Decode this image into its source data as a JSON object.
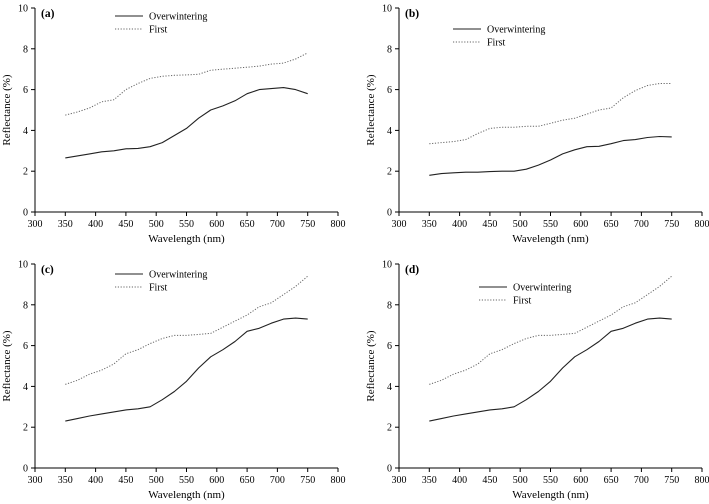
{
  "chart_data": [
    {
      "type": "line",
      "panel_label": "(a)",
      "xlabel": "Wavelength (nm)",
      "ylabel": "Reflectance (%)",
      "xlim": [
        300,
        800
      ],
      "ylim": [
        0,
        10
      ],
      "xticks": [
        "300",
        "350",
        "400",
        "450",
        "500",
        "550",
        "600",
        "650",
        "700",
        "750",
        "800"
      ],
      "yticks": [
        "0",
        "2",
        "4",
        "6",
        "8",
        "10"
      ],
      "x": [
        350,
        370,
        390,
        410,
        430,
        450,
        470,
        490,
        510,
        530,
        550,
        570,
        590,
        610,
        630,
        650,
        670,
        690,
        710,
        730,
        750
      ],
      "series": [
        {
          "name": "Overwintering",
          "style": "solid",
          "values": [
            2.65,
            2.75,
            2.85,
            2.95,
            3.0,
            3.1,
            3.12,
            3.2,
            3.4,
            3.75,
            4.1,
            4.6,
            5.0,
            5.2,
            5.45,
            5.8,
            6.0,
            6.05,
            6.1,
            6.0,
            5.8
          ]
        },
        {
          "name": "First",
          "style": "dotted",
          "values": [
            4.75,
            4.9,
            5.1,
            5.4,
            5.5,
            6.0,
            6.3,
            6.55,
            6.65,
            6.7,
            6.72,
            6.75,
            6.95,
            7.0,
            7.05,
            7.1,
            7.15,
            7.25,
            7.3,
            7.5,
            7.8
          ]
        }
      ]
    },
    {
      "type": "line",
      "panel_label": "(b)",
      "xlabel": "Wavelength (nm)",
      "ylabel": "Reflectance (%)",
      "xlim": [
        300,
        800
      ],
      "ylim": [
        0,
        10
      ],
      "xticks": [
        "300",
        "350",
        "400",
        "450",
        "500",
        "550",
        "600",
        "650",
        "700",
        "750",
        "800"
      ],
      "yticks": [
        "0",
        "2",
        "4",
        "6",
        "8",
        "10"
      ],
      "x": [
        350,
        370,
        390,
        410,
        430,
        450,
        470,
        490,
        510,
        530,
        550,
        570,
        590,
        610,
        630,
        650,
        670,
        690,
        710,
        730,
        750
      ],
      "series": [
        {
          "name": "Overwintering",
          "style": "solid",
          "values": [
            1.8,
            1.88,
            1.92,
            1.95,
            1.95,
            1.98,
            2.0,
            2.0,
            2.1,
            2.3,
            2.55,
            2.85,
            3.05,
            3.2,
            3.22,
            3.35,
            3.5,
            3.55,
            3.65,
            3.7,
            3.68
          ]
        },
        {
          "name": "First",
          "style": "dotted",
          "values": [
            3.35,
            3.4,
            3.45,
            3.55,
            3.85,
            4.1,
            4.15,
            4.15,
            4.2,
            4.2,
            4.35,
            4.5,
            4.6,
            4.8,
            5.0,
            5.1,
            5.6,
            5.95,
            6.2,
            6.3,
            6.3
          ]
        }
      ]
    },
    {
      "type": "line",
      "panel_label": "(c)",
      "xlabel": "Wavelength (nm)",
      "ylabel": "Reflectance (%)",
      "xlim": [
        300,
        800
      ],
      "ylim": [
        0,
        10
      ],
      "xticks": [
        "300",
        "350",
        "400",
        "450",
        "500",
        "550",
        "600",
        "650",
        "700",
        "750",
        "800"
      ],
      "yticks": [
        "0",
        "2",
        "4",
        "6",
        "8",
        "10"
      ],
      "x": [
        350,
        370,
        390,
        410,
        430,
        450,
        470,
        490,
        510,
        530,
        550,
        570,
        590,
        610,
        630,
        650,
        670,
        690,
        710,
        730,
        750
      ],
      "series": [
        {
          "name": "Overwintering",
          "style": "solid",
          "values": [
            2.3,
            2.42,
            2.55,
            2.65,
            2.75,
            2.85,
            2.9,
            3.0,
            3.35,
            3.75,
            4.25,
            4.9,
            5.45,
            5.8,
            6.2,
            6.7,
            6.85,
            7.1,
            7.3,
            7.35,
            7.3
          ]
        },
        {
          "name": "First",
          "style": "dotted",
          "values": [
            4.1,
            4.3,
            4.6,
            4.8,
            5.1,
            5.6,
            5.8,
            6.1,
            6.35,
            6.5,
            6.5,
            6.55,
            6.6,
            6.9,
            7.2,
            7.5,
            7.9,
            8.1,
            8.5,
            8.9,
            9.4
          ]
        }
      ]
    },
    {
      "type": "line",
      "panel_label": "(d)",
      "xlabel": "Wavelength (nm)",
      "ylabel": "Reflectance (%)",
      "xlim": [
        300,
        800
      ],
      "ylim": [
        0,
        10
      ],
      "xticks": [
        "300",
        "350",
        "400",
        "450",
        "500",
        "550",
        "600",
        "650",
        "700",
        "750",
        "800"
      ],
      "yticks": [
        "0",
        "2",
        "4",
        "6",
        "8",
        "10"
      ],
      "x": [
        350,
        370,
        390,
        410,
        430,
        450,
        470,
        490,
        510,
        530,
        550,
        570,
        590,
        610,
        630,
        650,
        670,
        690,
        710,
        730,
        750
      ],
      "series": [
        {
          "name": "Overwintering",
          "style": "solid",
          "values": [
            2.3,
            2.42,
            2.55,
            2.65,
            2.75,
            2.85,
            2.9,
            3.0,
            3.35,
            3.75,
            4.25,
            4.9,
            5.45,
            5.8,
            6.2,
            6.7,
            6.85,
            7.1,
            7.3,
            7.35,
            7.3
          ]
        },
        {
          "name": "First",
          "style": "dotted",
          "values": [
            4.1,
            4.3,
            4.6,
            4.8,
            5.1,
            5.6,
            5.8,
            6.1,
            6.35,
            6.5,
            6.5,
            6.55,
            6.6,
            6.9,
            7.2,
            7.5,
            7.9,
            8.1,
            8.5,
            8.9,
            9.4
          ]
        }
      ]
    }
  ]
}
